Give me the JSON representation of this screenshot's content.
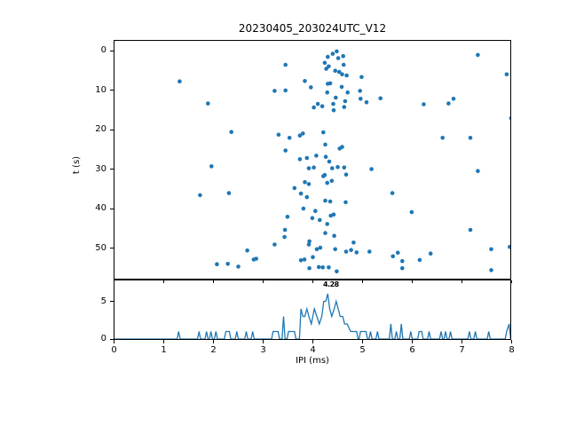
{
  "title": "20230405_203024UTC_V12",
  "colors": {
    "accent": "#1f77b4",
    "text": "#000000",
    "background": "#ffffff"
  },
  "chart_data": [
    {
      "type": "scatter",
      "title": "20230405_203024UTC_V12",
      "xlabel": "",
      "ylabel": "t (s)",
      "xlim": [
        0,
        8
      ],
      "ylim": [
        58,
        -2.7
      ],
      "y_inverted": true,
      "grid": false,
      "xticks": [
        0,
        1,
        2,
        3,
        4,
        5,
        6,
        7,
        8
      ],
      "xtick_labels_visible": false,
      "yticks": [
        0,
        10,
        20,
        30,
        40,
        50
      ],
      "marker_color": "#1f77b4",
      "points": [
        [
          1.32,
          7.8
        ],
        [
          1.89,
          13.4
        ],
        [
          2.36,
          20.6
        ],
        [
          3.45,
          3.6
        ],
        [
          4.3,
          1.6
        ],
        [
          4.4,
          0.8
        ],
        [
          4.48,
          0.2
        ],
        [
          4.51,
          1.9
        ],
        [
          4.61,
          1.4
        ],
        [
          4.24,
          3.1
        ],
        [
          4.32,
          4.0
        ],
        [
          4.27,
          4.6
        ],
        [
          4.62,
          3.6
        ],
        [
          4.45,
          5.1
        ],
        [
          4.53,
          5.4
        ],
        [
          4.59,
          6.0
        ],
        [
          4.68,
          6.3
        ],
        [
          4.98,
          6.7
        ],
        [
          3.84,
          7.7
        ],
        [
          4.3,
          8.4
        ],
        [
          3.96,
          9.3
        ],
        [
          4.35,
          8.3
        ],
        [
          4.58,
          9.2
        ],
        [
          3.23,
          10.2
        ],
        [
          3.45,
          10.1
        ],
        [
          4.7,
          10.6
        ],
        [
          4.95,
          10.2
        ],
        [
          4.29,
          10.6
        ],
        [
          4.46,
          11.9
        ],
        [
          4.96,
          12.2
        ],
        [
          4.65,
          12.8
        ],
        [
          5.08,
          13.1
        ],
        [
          4.1,
          13.5
        ],
        [
          4.41,
          13.5
        ],
        [
          4.19,
          14.1
        ],
        [
          4.02,
          14.4
        ],
        [
          4.63,
          14.3
        ],
        [
          4.42,
          15.1
        ],
        [
          7.32,
          1.1
        ],
        [
          7.9,
          6.0
        ],
        [
          5.36,
          12.1
        ],
        [
          6.23,
          13.6
        ],
        [
          6.73,
          13.4
        ],
        [
          6.83,
          12.2
        ],
        [
          7.99,
          17.1
        ],
        [
          3.31,
          21.3
        ],
        [
          3.53,
          22.1
        ],
        [
          3.74,
          21.5
        ],
        [
          3.8,
          21.0
        ],
        [
          4.21,
          20.7
        ],
        [
          6.61,
          22.1
        ],
        [
          7.17,
          22.1
        ],
        [
          4.25,
          23.8
        ],
        [
          4.54,
          24.8
        ],
        [
          4.59,
          24.4
        ],
        [
          3.45,
          25.3
        ],
        [
          4.07,
          26.6
        ],
        [
          4.26,
          26.9
        ],
        [
          1.96,
          29.3
        ],
        [
          1.73,
          36.6
        ],
        [
          2.31,
          36.1
        ],
        [
          3.74,
          27.5
        ],
        [
          3.88,
          27.2
        ],
        [
          4.33,
          28.1
        ],
        [
          3.92,
          29.8
        ],
        [
          4.02,
          29.6
        ],
        [
          4.39,
          29.8
        ],
        [
          4.5,
          29.5
        ],
        [
          4.63,
          29.6
        ],
        [
          5.18,
          30.0
        ],
        [
          7.32,
          30.5
        ],
        [
          4.21,
          31.8
        ],
        [
          4.24,
          31.5
        ],
        [
          4.67,
          31.4
        ],
        [
          4.38,
          33.0
        ],
        [
          4.29,
          33.5
        ],
        [
          3.84,
          33.3
        ],
        [
          3.92,
          33.8
        ],
        [
          3.63,
          34.8
        ],
        [
          3.76,
          36.2
        ],
        [
          5.6,
          36.1
        ],
        [
          3.88,
          37.1
        ],
        [
          4.25,
          38.0
        ],
        [
          4.35,
          38.2
        ],
        [
          4.66,
          38.4
        ],
        [
          3.81,
          40.0
        ],
        [
          4.05,
          40.6
        ],
        [
          5.99,
          40.9
        ],
        [
          4.36,
          41.8
        ],
        [
          4.42,
          41.5
        ],
        [
          3.49,
          42.1
        ],
        [
          3.99,
          42.4
        ],
        [
          4.14,
          42.9
        ],
        [
          4.29,
          43.9
        ],
        [
          3.44,
          45.4
        ],
        [
          7.17,
          45.4
        ],
        [
          4.25,
          46.2
        ],
        [
          3.43,
          47.2
        ],
        [
          4.43,
          46.9
        ],
        [
          3.23,
          49.1
        ],
        [
          3.93,
          48.3
        ],
        [
          3.92,
          49.1
        ],
        [
          4.82,
          48.6
        ],
        [
          4.08,
          50.3
        ],
        [
          4.15,
          49.9
        ],
        [
          4.45,
          50.3
        ],
        [
          4.67,
          50.9
        ],
        [
          4.77,
          50.5
        ],
        [
          4.88,
          51.1
        ],
        [
          5.14,
          50.9
        ],
        [
          7.96,
          49.7
        ],
        [
          7.59,
          50.3
        ],
        [
          2.68,
          50.6
        ],
        [
          2.86,
          52.7
        ],
        [
          2.81,
          52.9
        ],
        [
          3.76,
          53.1
        ],
        [
          3.83,
          52.9
        ],
        [
          4.0,
          52.3
        ],
        [
          5.61,
          52.1
        ],
        [
          5.71,
          51.2
        ],
        [
          6.37,
          51.4
        ],
        [
          6.15,
          53.0
        ],
        [
          5.8,
          53.3
        ],
        [
          2.07,
          54.1
        ],
        [
          2.29,
          54.0
        ],
        [
          2.5,
          54.7
        ],
        [
          4.12,
          54.8
        ],
        [
          4.2,
          54.9
        ],
        [
          3.93,
          55.1
        ],
        [
          4.32,
          54.9
        ],
        [
          4.48,
          55.9
        ],
        [
          5.8,
          55.1
        ],
        [
          7.59,
          55.6
        ]
      ]
    },
    {
      "type": "line",
      "title": "",
      "xlabel": "IPI (ms)",
      "ylabel": "",
      "xlim": [
        0,
        8
      ],
      "ylim": [
        0,
        7.9
      ],
      "grid": false,
      "xticks": [
        0,
        1,
        2,
        3,
        4,
        5,
        6,
        7,
        8
      ],
      "yticks": [
        0,
        5
      ],
      "line_color": "#1f77b4",
      "annotation": {
        "text": "4.28",
        "x": 4.22,
        "y_counts": 6.5
      },
      "bins_note": "nonzero histogram bins as [IPI ms, count]",
      "bins": [
        [
          1.3,
          1
        ],
        [
          1.71,
          1
        ],
        [
          1.86,
          1
        ],
        [
          1.95,
          1
        ],
        [
          2.05,
          1
        ],
        [
          2.25,
          1
        ],
        [
          2.32,
          1
        ],
        [
          2.47,
          1
        ],
        [
          2.66,
          1
        ],
        [
          2.79,
          1
        ],
        [
          3.2,
          1
        ],
        [
          3.25,
          1
        ],
        [
          3.3,
          1
        ],
        [
          3.41,
          3
        ],
        [
          3.51,
          1
        ],
        [
          3.57,
          1
        ],
        [
          3.63,
          1
        ],
        [
          3.76,
          4
        ],
        [
          3.8,
          3
        ],
        [
          3.84,
          3
        ],
        [
          3.88,
          4
        ],
        [
          3.92,
          3
        ],
        [
          3.97,
          2
        ],
        [
          4.03,
          4
        ],
        [
          4.08,
          3
        ],
        [
          4.13,
          2
        ],
        [
          4.18,
          3
        ],
        [
          4.22,
          5
        ],
        [
          4.26,
          5
        ],
        [
          4.3,
          6
        ],
        [
          4.34,
          4
        ],
        [
          4.38,
          3
        ],
        [
          4.43,
          4
        ],
        [
          4.47,
          5
        ],
        [
          4.51,
          4
        ],
        [
          4.55,
          3
        ],
        [
          4.6,
          3
        ],
        [
          4.64,
          2
        ],
        [
          4.69,
          2
        ],
        [
          4.76,
          1
        ],
        [
          4.82,
          1
        ],
        [
          4.88,
          1
        ],
        [
          4.96,
          1
        ],
        [
          5.02,
          1
        ],
        [
          5.07,
          1
        ],
        [
          5.16,
          1
        ],
        [
          5.3,
          1
        ],
        [
          5.57,
          2
        ],
        [
          5.68,
          1
        ],
        [
          5.78,
          2
        ],
        [
          5.97,
          1
        ],
        [
          6.14,
          1
        ],
        [
          6.19,
          1
        ],
        [
          6.34,
          1
        ],
        [
          6.58,
          1
        ],
        [
          6.67,
          1
        ],
        [
          6.77,
          1
        ],
        [
          7.15,
          1
        ],
        [
          7.27,
          1
        ],
        [
          7.54,
          1
        ],
        [
          7.9,
          1
        ],
        [
          7.95,
          2
        ]
      ]
    }
  ]
}
